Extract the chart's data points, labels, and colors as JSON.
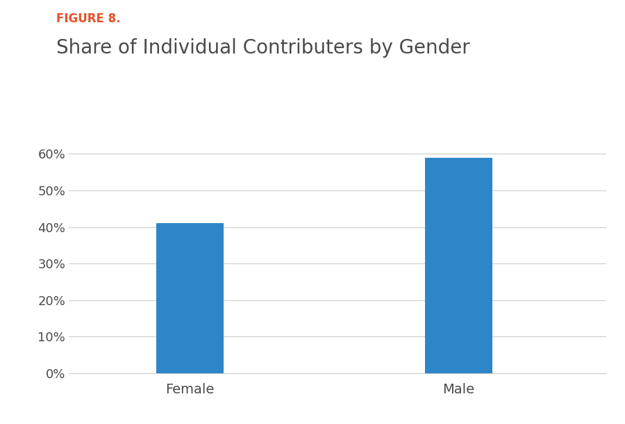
{
  "figure_label": "FIGURE 8.",
  "title": "Share of Individual Contributers by Gender",
  "categories": [
    "Female",
    "Male"
  ],
  "values": [
    0.41,
    0.59
  ],
  "bar_color": "#2e86c8",
  "ylim": [
    0,
    0.65
  ],
  "yticks": [
    0.0,
    0.1,
    0.2,
    0.3,
    0.4,
    0.5,
    0.6
  ],
  "ytick_labels": [
    "0%",
    "10%",
    "20%",
    "30%",
    "40%",
    "50%",
    "60%"
  ],
  "figure_label_color": "#e8502a",
  "title_color": "#4a4a4a",
  "tick_color": "#4a4a4a",
  "grid_color": "#cccccc",
  "background_color": "#ffffff",
  "bar_width": 0.25,
  "figure_label_fontsize": 12,
  "title_fontsize": 20,
  "tick_fontsize": 13,
  "xtick_fontsize": 14
}
